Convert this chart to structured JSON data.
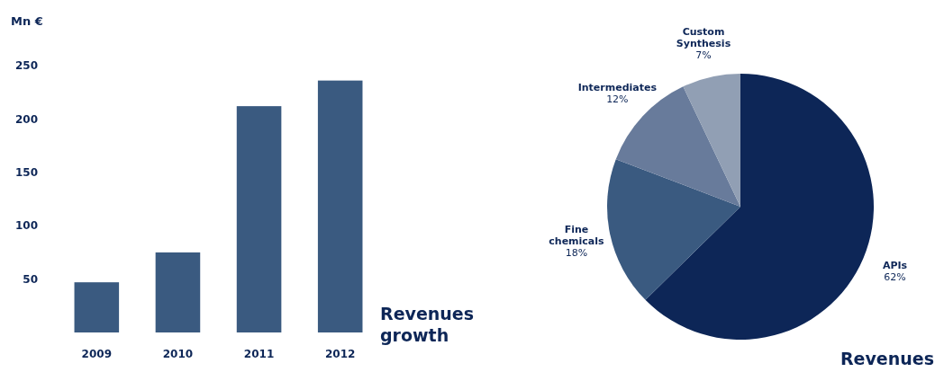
{
  "chart_data": [
    {
      "type": "bar",
      "title": "Revenues growth",
      "ylabel": "Mn €",
      "categories": [
        "2009",
        "2010",
        "2011",
        "2012"
      ],
      "values": [
        47,
        75,
        212,
        236
      ],
      "color": "#3a5a80",
      "ylim": [
        0,
        250
      ],
      "yticks": [
        50,
        100,
        150,
        200,
        250
      ],
      "grid": false
    },
    {
      "type": "pie",
      "title": "Revenues",
      "categories": [
        "APIs",
        "Fine chemicals",
        "Intermediates",
        "Custom Synthesis"
      ],
      "values": [
        62,
        18,
        12,
        7
      ],
      "colors": [
        "#0d2657",
        "#3a5a80",
        "#687b9b",
        "#919fb4"
      ],
      "value_labels": [
        "62%",
        "18%",
        "12%",
        "7%"
      ]
    }
  ]
}
